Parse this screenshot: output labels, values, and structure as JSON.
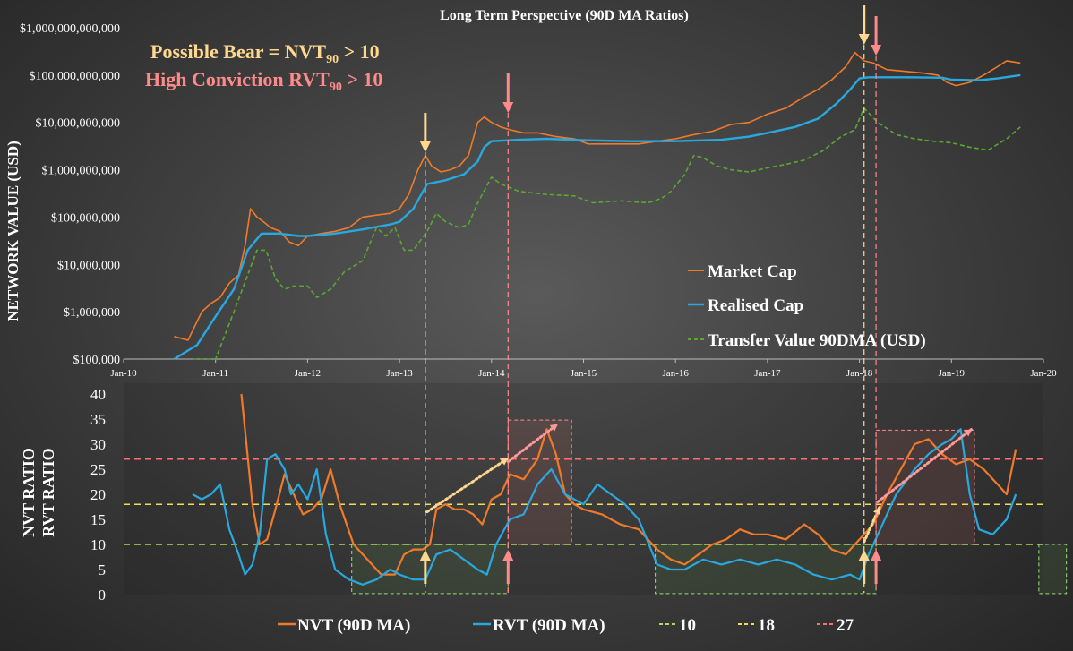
{
  "chart_data": [
    {
      "type": "line",
      "title": "Long Term Perspective (90D MA Ratios)",
      "ylabel": "NETWORK VALUE (USD)",
      "yscale": "log",
      "ylim": [
        100000,
        1000000000000
      ],
      "x_ticks": [
        "Jan-10",
        "Jan-11",
        "Jan-12",
        "Jan-13",
        "Jan-14",
        "Jan-15",
        "Jan-16",
        "Jan-17",
        "Jan-18",
        "Jan-19",
        "Jan-20"
      ],
      "y_ticks": [
        "$100,000",
        "$1,000,000",
        "$10,000,000",
        "$100,000,000",
        "$1,000,000,000",
        "$10,000,000,000",
        "$100,000,000,000",
        "$1,000,000,000,000"
      ],
      "annotations": [
        {
          "text": "Possible Bear = NVT",
          "sub": "90",
          "suffix": " > 10",
          "color": "#ffd890"
        },
        {
          "text": "High Conviction RVT",
          "sub": "90",
          "suffix": " > 10",
          "color": "#ff8a8a"
        }
      ],
      "legend_position": "bottom-right",
      "series": [
        {
          "name": "Market Cap",
          "color": "#f07a2a",
          "x": [
            2010.55,
            2010.7,
            2010.85,
            2010.95,
            2011.05,
            2011.15,
            2011.25,
            2011.32,
            2011.38,
            2011.45,
            2011.52,
            2011.6,
            2011.7,
            2011.8,
            2011.9,
            2012.0,
            2012.15,
            2012.3,
            2012.45,
            2012.6,
            2012.75,
            2012.9,
            2013.0,
            2013.1,
            2013.2,
            2013.28,
            2013.35,
            2013.45,
            2013.55,
            2013.65,
            2013.75,
            2013.85,
            2013.92,
            2014.0,
            2014.1,
            2014.2,
            2014.35,
            2014.5,
            2014.7,
            2014.9,
            2015.05,
            2015.3,
            2015.6,
            2015.8,
            2016.0,
            2016.2,
            2016.4,
            2016.6,
            2016.8,
            2017.0,
            2017.2,
            2017.4,
            2017.55,
            2017.7,
            2017.85,
            2017.95,
            2018.05,
            2018.15,
            2018.3,
            2018.5,
            2018.7,
            2018.85,
            2018.95,
            2019.05,
            2019.2,
            2019.35,
            2019.5,
            2019.6,
            2019.75
          ],
          "y": [
            300000,
            250000,
            1000000,
            1500000,
            2000000,
            4000000,
            6000000,
            25000000,
            150000000,
            100000000,
            80000000,
            60000000,
            50000000,
            30000000,
            25000000,
            40000000,
            45000000,
            50000000,
            60000000,
            100000000,
            110000000,
            120000000,
            150000000,
            300000000,
            1000000000,
            2000000000,
            1200000000,
            900000000,
            1000000000,
            1200000000,
            2000000000,
            10000000000,
            13000000000,
            10000000000,
            8000000000,
            7000000000,
            6000000000,
            6000000000,
            5000000000,
            4500000000,
            3500000000,
            3500000000,
            3500000000,
            4000000000,
            4500000000,
            5500000000,
            6500000000,
            9000000000,
            10000000000,
            15000000000,
            20000000000,
            35000000000,
            50000000000,
            80000000000,
            150000000000,
            300000000000,
            200000000000,
            180000000000,
            130000000000,
            120000000000,
            110000000000,
            100000000000,
            70000000000,
            60000000000,
            70000000000,
            100000000000,
            150000000000,
            200000000000,
            180000000000
          ]
        },
        {
          "name": "Realised Cap",
          "color": "#29a8e0",
          "x": [
            2010.55,
            2010.8,
            2011.0,
            2011.2,
            2011.35,
            2011.5,
            2011.7,
            2011.9,
            2012.0,
            2012.3,
            2012.6,
            2012.9,
            2013.0,
            2013.15,
            2013.3,
            2013.5,
            2013.7,
            2013.85,
            2013.92,
            2014.0,
            2014.3,
            2014.6,
            2015.0,
            2015.5,
            2016.0,
            2016.5,
            2016.8,
            2017.0,
            2017.3,
            2017.55,
            2017.75,
            2017.9,
            2018.0,
            2018.1,
            2018.5,
            2018.9,
            2019.0,
            2019.3,
            2019.5,
            2019.75
          ],
          "y": [
            60000,
            200000,
            800000,
            3000000,
            20000000,
            45000000,
            45000000,
            40000000,
            40000000,
            45000000,
            55000000,
            70000000,
            80000000,
            150000000,
            500000000,
            600000000,
            800000000,
            1500000000,
            3000000000,
            4000000000,
            4300000000,
            4500000000,
            4200000000,
            4000000000,
            4000000000,
            4300000000,
            5000000000,
            6000000000,
            8000000000,
            12000000000,
            25000000000,
            50000000000,
            85000000000,
            90000000000,
            90000000000,
            88000000000,
            80000000000,
            78000000000,
            85000000000,
            100000000000
          ]
        },
        {
          "name": "Transfer Value 90DMA (USD)",
          "color": "#5aa832",
          "x": [
            2010.75,
            2011.0,
            2011.2,
            2011.35,
            2011.45,
            2011.55,
            2011.65,
            2011.75,
            2011.85,
            2012.0,
            2012.1,
            2012.25,
            2012.4,
            2012.6,
            2012.75,
            2012.85,
            2012.95,
            2013.05,
            2013.15,
            2013.3,
            2013.4,
            2013.5,
            2013.65,
            2013.75,
            2013.85,
            2014.0,
            2014.1,
            2014.3,
            2014.6,
            2014.9,
            2015.1,
            2015.4,
            2015.7,
            2015.85,
            2015.95,
            2016.1,
            2016.2,
            2016.3,
            2016.45,
            2016.6,
            2016.8,
            2017.0,
            2017.2,
            2017.4,
            2017.6,
            2017.8,
            2017.95,
            2018.05,
            2018.2,
            2018.4,
            2018.6,
            2018.8,
            2019.0,
            2019.2,
            2019.4,
            2019.6,
            2019.75
          ],
          "y": [
            40000,
            100000,
            1000000,
            6000000,
            20000000,
            20000000,
            5000000,
            3000000,
            3500000,
            3500000,
            2000000,
            3000000,
            7000000,
            12000000,
            60000000,
            40000000,
            60000000,
            20000000,
            20000000,
            50000000,
            120000000,
            80000000,
            60000000,
            70000000,
            200000000,
            700000000,
            500000000,
            350000000,
            300000000,
            280000000,
            200000000,
            220000000,
            200000000,
            250000000,
            350000000,
            800000000,
            2000000000,
            1800000000,
            1200000000,
            1000000000,
            900000000,
            1100000000,
            1300000000,
            1600000000,
            2500000000,
            5000000000,
            7000000000,
            20000000000,
            10000000000,
            5500000000,
            4500000000,
            4000000000,
            3700000000,
            3000000000,
            2600000000,
            4500000000,
            8000000000
          ]
        }
      ],
      "markers": [
        {
          "x": 2013.28,
          "color": "#ffd890"
        },
        {
          "x": 2014.18,
          "color": "#ff8a8a"
        },
        {
          "x": 2018.05,
          "color": "#ffd890"
        },
        {
          "x": 2018.18,
          "color": "#ff8a8a"
        }
      ]
    },
    {
      "type": "line",
      "ylabel": [
        "NVT RATIO",
        "RVT RATIO"
      ],
      "ylim": [
        0,
        40
      ],
      "y_ticks": [
        "0",
        "5",
        "10",
        "15",
        "20",
        "25",
        "30",
        "35",
        "40"
      ],
      "legend_position": "bottom",
      "series": [
        {
          "name": "NVT (90D MA)",
          "color": "#f07a2a",
          "x": [
            2011.28,
            2011.33,
            2011.4,
            2011.48,
            2011.56,
            2011.65,
            2011.75,
            2011.85,
            2011.95,
            2012.05,
            2012.15,
            2012.25,
            2012.35,
            2012.5,
            2012.65,
            2012.8,
            2012.95,
            2013.05,
            2013.15,
            2013.25,
            2013.33,
            2013.4,
            2013.5,
            2013.6,
            2013.7,
            2013.8,
            2013.9,
            2014.0,
            2014.1,
            2014.2,
            2014.35,
            2014.5,
            2014.6,
            2014.7,
            2014.8,
            2014.9,
            2015.0,
            2015.2,
            2015.4,
            2015.6,
            2015.8,
            2015.95,
            2016.1,
            2016.25,
            2016.4,
            2016.55,
            2016.7,
            2016.85,
            2017.0,
            2017.2,
            2017.4,
            2017.55,
            2017.7,
            2017.85,
            2017.95,
            2018.05,
            2018.15,
            2018.3,
            2018.45,
            2018.6,
            2018.75,
            2018.9,
            2019.05,
            2019.2,
            2019.35,
            2019.5,
            2019.6,
            2019.7
          ],
          "y": [
            40,
            31,
            18,
            10,
            11,
            17,
            24,
            20,
            16,
            17,
            19,
            25,
            18,
            10,
            7,
            4,
            4,
            8,
            9,
            9,
            10,
            17,
            18,
            17,
            17,
            16,
            14,
            19,
            20,
            24,
            23,
            27,
            33,
            28,
            20,
            18,
            17,
            16,
            14,
            13,
            9,
            7,
            6,
            8,
            10,
            11,
            13,
            12,
            12,
            11,
            14,
            12,
            9,
            8,
            10,
            12,
            14,
            20,
            25,
            30,
            31,
            28,
            26,
            27,
            25,
            22,
            20,
            29
          ]
        },
        {
          "name": "RVT (90D MA)",
          "color": "#29a8e0",
          "x": [
            2010.75,
            2010.85,
            2010.95,
            2011.05,
            2011.15,
            2011.25,
            2011.32,
            2011.4,
            2011.48,
            2011.56,
            2011.65,
            2011.75,
            2011.82,
            2011.9,
            2012.0,
            2012.1,
            2012.2,
            2012.3,
            2012.45,
            2012.6,
            2012.75,
            2012.9,
            2013.0,
            2013.15,
            2013.28,
            2013.4,
            2013.55,
            2013.7,
            2013.85,
            2013.95,
            2014.05,
            2014.2,
            2014.35,
            2014.5,
            2014.65,
            2014.8,
            2014.9,
            2015.0,
            2015.15,
            2015.3,
            2015.45,
            2015.6,
            2015.8,
            2015.95,
            2016.1,
            2016.3,
            2016.5,
            2016.7,
            2016.9,
            2017.1,
            2017.3,
            2017.5,
            2017.7,
            2017.9,
            2018.0,
            2018.1,
            2018.25,
            2018.4,
            2018.6,
            2018.75,
            2018.9,
            2019.0,
            2019.1,
            2019.2,
            2019.3,
            2019.45,
            2019.6,
            2019.7
          ],
          "y": [
            20,
            19,
            20,
            22,
            13,
            8,
            4,
            6,
            12,
            27,
            28,
            25,
            20,
            22,
            19,
            25,
            12,
            5,
            3,
            2,
            3,
            5,
            4,
            3,
            3,
            8,
            9,
            7,
            5,
            4,
            10,
            15,
            16,
            22,
            25,
            20,
            19,
            18,
            22,
            20,
            18,
            15,
            6,
            5,
            5,
            7,
            6,
            7,
            6,
            7,
            6,
            4,
            3,
            4,
            3,
            8,
            14,
            20,
            25,
            28,
            30,
            31,
            33,
            20,
            13,
            12,
            15,
            20
          ]
        }
      ],
      "threshold_lines": [
        {
          "name": "10",
          "value": 10,
          "color": "#a9dd54"
        },
        {
          "name": "18",
          "value": 18,
          "color": "#f1dc55"
        },
        {
          "name": "27",
          "value": 27,
          "color": "#ff6f6f"
        }
      ]
    }
  ]
}
